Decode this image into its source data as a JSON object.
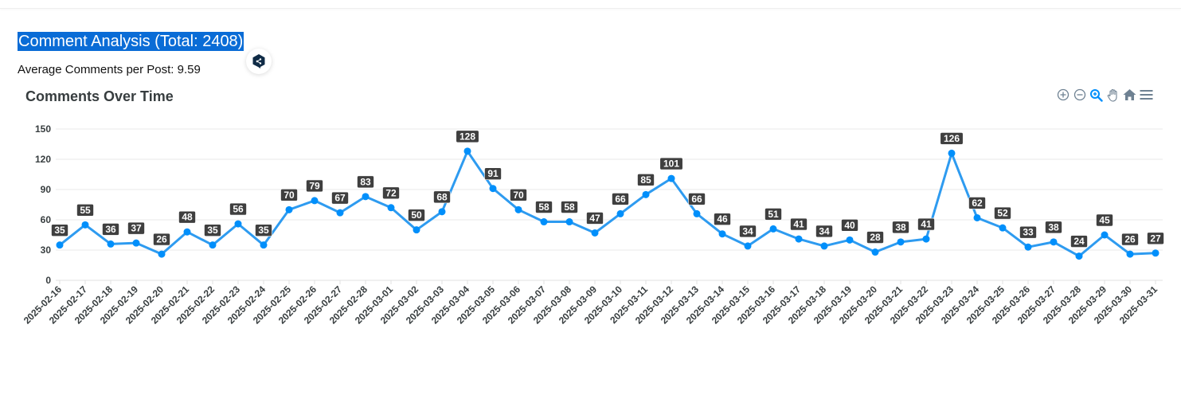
{
  "page": {
    "title": "Comment Analysis (Total: 2408)",
    "average_text": "Average Comments per Post: 9.59"
  },
  "toolbar": {
    "icons": [
      "zoom-in-icon",
      "zoom-out-icon",
      "selection-zoom-icon",
      "pan-hand-icon",
      "home-reset-icon",
      "menu-icon"
    ],
    "active_icon": "selection-zoom-icon",
    "colors": {
      "default": "#6e8192",
      "active": "#008ffb"
    }
  },
  "colors": {
    "line": "#2e9bf0",
    "marker": "#008ffb",
    "label_bg": "#3f3f3f",
    "label_text": "#ffffff",
    "grid": "#e8e8e8",
    "axis_text": "#373d3f",
    "title_highlight": "#0a6cd6"
  },
  "chart_data": {
    "type": "line",
    "title": "Comments Over Time",
    "xlabel": "",
    "ylabel": "",
    "ylim": [
      0,
      150
    ],
    "yticks": [
      0,
      30,
      60,
      90,
      120,
      150
    ],
    "grid": true,
    "legend": null,
    "data_labels": true,
    "categories": [
      "2025-02-16",
      "2025-02-17",
      "2025-02-18",
      "2025-02-19",
      "2025-02-20",
      "2025-02-21",
      "2025-02-22",
      "2025-02-23",
      "2025-02-24",
      "2025-02-25",
      "2025-02-26",
      "2025-02-27",
      "2025-02-28",
      "2025-03-01",
      "2025-03-02",
      "2025-03-03",
      "2025-03-04",
      "2025-03-05",
      "2025-03-06",
      "2025-03-07",
      "2025-03-08",
      "2025-03-09",
      "2025-03-10",
      "2025-03-11",
      "2025-03-12",
      "2025-03-13",
      "2025-03-14",
      "2025-03-15",
      "2025-03-16",
      "2025-03-17",
      "2025-03-18",
      "2025-03-19",
      "2025-03-20",
      "2025-03-21",
      "2025-03-22",
      "2025-03-23",
      "2025-03-24",
      "2025-03-25",
      "2025-03-26",
      "2025-03-27",
      "2025-03-28",
      "2025-03-29",
      "2025-03-30",
      "2025-03-31"
    ],
    "series": [
      {
        "name": "Comments",
        "values": [
          35,
          55,
          36,
          37,
          26,
          48,
          35,
          56,
          35,
          70,
          79,
          67,
          83,
          72,
          50,
          68,
          128,
          91,
          70,
          58,
          58,
          47,
          66,
          85,
          101,
          66,
          46,
          34,
          51,
          41,
          34,
          40,
          28,
          38,
          41,
          126,
          62,
          52,
          33,
          38,
          24,
          45,
          26,
          27
        ]
      }
    ]
  }
}
